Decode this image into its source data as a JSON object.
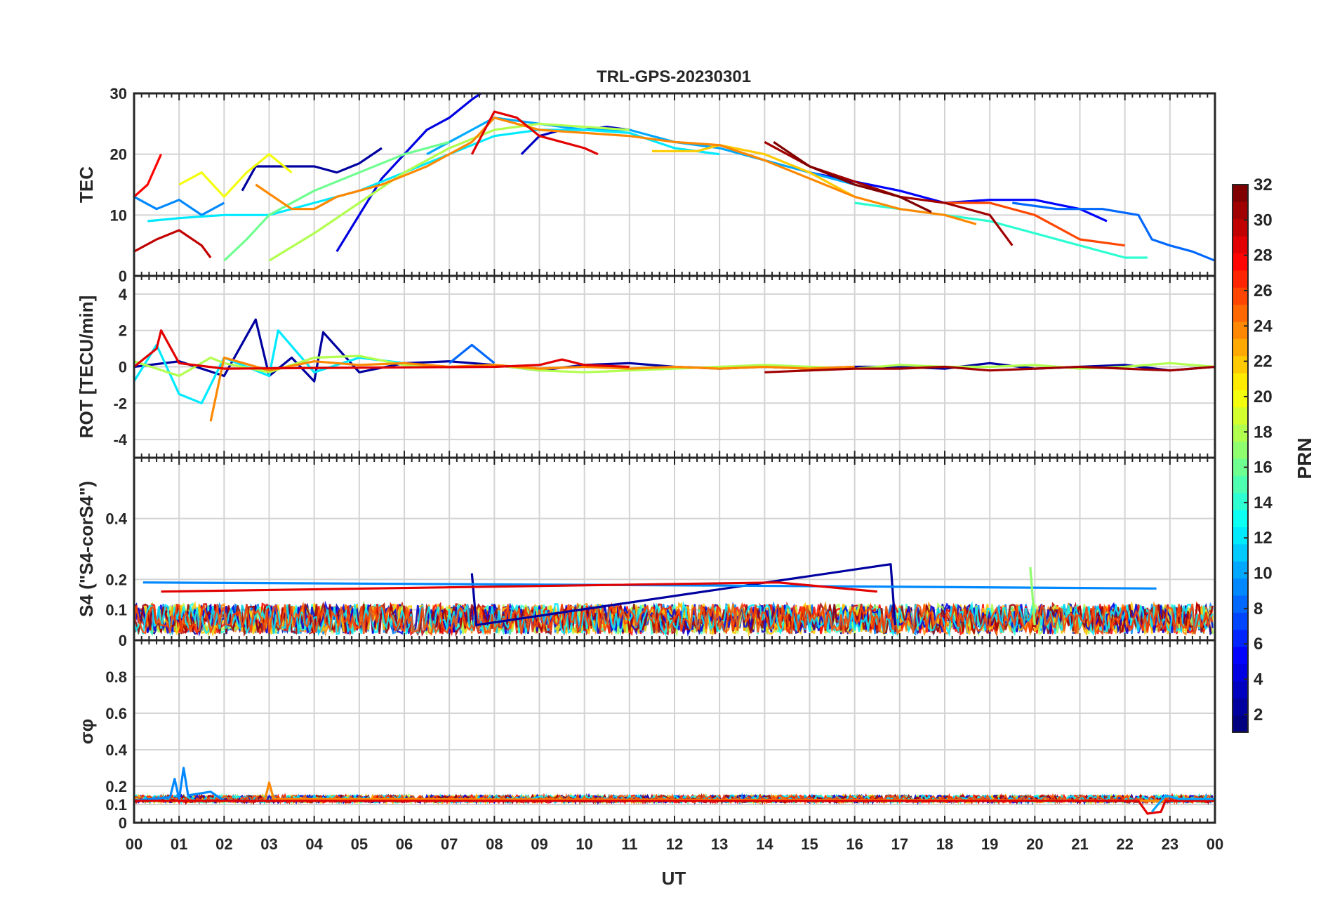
{
  "chart_data": {
    "type": "line",
    "title": "TRL-GPS-20230301",
    "xlabel": "UT",
    "x_ticks": [
      "00",
      "01",
      "02",
      "03",
      "04",
      "05",
      "06",
      "07",
      "08",
      "09",
      "10",
      "11",
      "12",
      "13",
      "14",
      "15",
      "16",
      "17",
      "18",
      "19",
      "20",
      "21",
      "22",
      "23",
      "00"
    ],
    "xlim": [
      0,
      24
    ],
    "grid": true,
    "colorbar": {
      "label": "PRN",
      "range": [
        1,
        32
      ],
      "ticks": [
        "2",
        "4",
        "6",
        "8",
        "10",
        "12",
        "14",
        "16",
        "18",
        "20",
        "22",
        "24",
        "26",
        "28",
        "30",
        "32"
      ],
      "colormap": "jet"
    },
    "panels": [
      {
        "id": "tec",
        "ylabel": "TEC",
        "ylim": [
          0,
          30
        ],
        "yticks": [
          "0",
          "10",
          "20",
          "30"
        ],
        "series": [
          {
            "prn": 2,
            "x": [
              2.4,
              2.7,
              3.0,
              3.5,
              4.0,
              4.5,
              5.0,
              5.5
            ],
            "values": [
              14,
              18,
              18,
              18,
              18,
              17,
              18.5,
              21
            ]
          },
          {
            "prn": 3,
            "x": [
              8.6,
              9.0,
              9.5,
              10.0,
              10.5,
              11.0
            ],
            "values": [
              20,
              23,
              24,
              24,
              24.5,
              24
            ]
          },
          {
            "prn": 4,
            "x": [
              4.5,
              5.0,
              5.5,
              6.0,
              6.5,
              7.0,
              7.5,
              7.7
            ],
            "values": [
              4,
              10,
              16,
              20,
              24,
              26,
              29,
              30
            ]
          },
          {
            "prn": 5,
            "x": [
              15,
              16,
              17,
              18,
              19,
              20,
              21,
              21.6
            ],
            "values": [
              17,
              15.5,
              14,
              12,
              12.5,
              12.5,
              11,
              9
            ]
          },
          {
            "prn": 8,
            "x": [
              19.5,
              20.5,
              21.5,
              22.3,
              22.6,
              23.0,
              23.5,
              24.0
            ],
            "values": [
              12,
              11,
              11,
              10,
              6,
              5,
              4,
              2.5
            ]
          },
          {
            "prn": 9,
            "x": [
              0,
              0.5,
              1.0,
              1.5,
              2.0
            ],
            "values": [
              13,
              11,
              12.5,
              10,
              12
            ]
          },
          {
            "prn": 10,
            "x": [
              6.5,
              7.0,
              7.5,
              8.0,
              9.0,
              10.0,
              11.0,
              12.0,
              13.0,
              14.0,
              15.0,
              16.0
            ],
            "values": [
              20,
              22,
              24,
              26,
              25,
              24,
              24,
              22,
              21,
              19,
              17,
              15
            ]
          },
          {
            "prn": 12,
            "x": [
              0.3,
              1.0,
              2.0,
              3.0,
              4.0,
              5.0,
              6.0,
              7.0,
              8.0,
              9.0,
              10.0,
              11.0,
              12.0,
              13.0
            ],
            "values": [
              9,
              9.5,
              10,
              10,
              12,
              14,
              17,
              20,
              23,
              24,
              24,
              23.5,
              21,
              20
            ]
          },
          {
            "prn": 14,
            "x": [
              16,
              17,
              18,
              19,
              20,
              21,
              22,
              22.5
            ],
            "values": [
              12,
              11,
              10,
              9,
              7,
              5,
              3,
              3
            ]
          },
          {
            "prn": 16,
            "x": [
              2.0,
              2.5,
              3.0,
              4.0,
              5.0,
              6.0,
              7.0
            ],
            "values": [
              2.5,
              6,
              10,
              14,
              17,
              20,
              22
            ]
          },
          {
            "prn": 18,
            "x": [
              3.0,
              4.0,
              5.0,
              6.0,
              7.0,
              8.0,
              9.0,
              10.0,
              11.0
            ],
            "values": [
              2.5,
              7,
              12,
              17,
              21,
              24,
              25,
              24.5,
              24
            ]
          },
          {
            "prn": 20,
            "x": [
              1.0,
              1.5,
              2.0,
              2.5,
              3.0,
              3.5
            ],
            "values": [
              15,
              17,
              13,
              17,
              20,
              17
            ]
          },
          {
            "prn": 22,
            "x": [
              11.5,
              12.5,
              13.0,
              14.0,
              15.0,
              16.0
            ],
            "values": [
              20.5,
              20.5,
              21.5,
              20,
              17,
              13
            ]
          },
          {
            "prn": 24,
            "x": [
              2.7,
              3.5,
              4.0,
              4.5,
              5.5,
              6.5,
              7.5,
              8.0,
              9.0,
              10.0,
              11.0,
              12.0,
              13.0,
              14.0,
              15.0,
              16.0,
              17.0,
              18.0,
              18.7
            ],
            "values": [
              15,
              11,
              11,
              13,
              15,
              18,
              22,
              26,
              24,
              23.5,
              23,
              22,
              21.5,
              19,
              16,
              13,
              11,
              10,
              8.5
            ]
          },
          {
            "prn": 26,
            "x": [
              18,
              19,
              20,
              21,
              22
            ],
            "values": [
              12,
              12,
              10,
              6,
              5
            ]
          },
          {
            "prn": 28,
            "x": [
              0,
              0.3,
              0.6
            ],
            "values": [
              13,
              15,
              20
            ]
          },
          {
            "prn": 29,
            "x": [
              7.5,
              8.0,
              8.5,
              9.0,
              9.5,
              10.0,
              10.3
            ],
            "values": [
              20,
              27,
              26,
              23,
              22,
              21,
              20
            ]
          },
          {
            "prn": 30,
            "x": [
              0,
              0.5,
              1.0,
              1.5,
              1.7
            ],
            "values": [
              4,
              6,
              7.5,
              5,
              3
            ]
          },
          {
            "prn": 31,
            "x": [
              14,
              15,
              16,
              17,
              18,
              19,
              19.5
            ],
            "values": [
              22,
              18,
              15.5,
              13,
              12,
              10,
              5
            ]
          },
          {
            "prn": 32,
            "x": [
              14.2,
              15,
              16,
              17,
              17.7
            ],
            "values": [
              22,
              18,
              15,
              13,
              10.5
            ]
          }
        ]
      },
      {
        "id": "rot",
        "ylabel": "ROT [TECU/min]",
        "ylim": [
          -5,
          5
        ],
        "yticks": [
          "-4",
          "-2",
          "0",
          "2",
          "4"
        ],
        "series": [
          {
            "prn": 2,
            "x": [
              0,
              1,
              2,
              2.7,
              3,
              3.5,
              4,
              4.2,
              5,
              6,
              7,
              8,
              9,
              10,
              11,
              12,
              13,
              14,
              15,
              16,
              17,
              18,
              19,
              20,
              21,
              22,
              23,
              24
            ],
            "values": [
              0,
              0.3,
              -0.5,
              2.6,
              -0.5,
              0.5,
              -0.8,
              1.9,
              -0.3,
              0.2,
              0.3,
              0.1,
              -0.2,
              0.1,
              0.2,
              0,
              -0.1,
              0,
              -0.1,
              0,
              0,
              -0.1,
              0.2,
              -0.1,
              0,
              0.1,
              -0.2,
              0
            ]
          },
          {
            "prn": 8,
            "x": [
              7,
              7.5,
              8
            ],
            "values": [
              0.2,
              1.2,
              0.2
            ]
          },
          {
            "prn": 12,
            "x": [
              0,
              0.5,
              1,
              1.5,
              2,
              3,
              3.2,
              4,
              5,
              6
            ],
            "values": [
              -0.8,
              1.2,
              -1.5,
              -2,
              0.5,
              -0.5,
              2.0,
              -0.3,
              0.5,
              0.2
            ]
          },
          {
            "prn": 18,
            "x": [
              0,
              1,
              1.7,
              2,
              3,
              4,
              5,
              6,
              7,
              8,
              9,
              10,
              11,
              12,
              13,
              14,
              15,
              16,
              17,
              18,
              19,
              20,
              21,
              22,
              23,
              24
            ],
            "values": [
              0.3,
              -0.5,
              0.5,
              0.2,
              -0.3,
              0.5,
              0.6,
              0.1,
              0,
              0.1,
              -0.2,
              -0.3,
              -0.2,
              -0.1,
              0,
              0.1,
              0,
              -0.1,
              0.1,
              0,
              0,
              0.1,
              -0.1,
              0,
              0.2,
              0
            ]
          },
          {
            "prn": 24,
            "x": [
              1.7,
              2,
              3,
              4,
              5,
              6,
              7,
              8,
              9,
              10,
              11,
              12,
              13,
              14,
              15,
              16
            ],
            "values": [
              -3,
              0.5,
              -0.2,
              0.3,
              0.1,
              0.2,
              0,
              0.1,
              -0.1,
              0,
              -0.1,
              0,
              -0.1,
              0,
              -0.1,
              0
            ]
          },
          {
            "prn": 29,
            "x": [
              0,
              0.5,
              0.6,
              1,
              2,
              8,
              9,
              9.5,
              10,
              11
            ],
            "values": [
              0,
              1.0,
              2.0,
              0.2,
              -0.1,
              0,
              0.1,
              0.4,
              0.1,
              0
            ]
          },
          {
            "prn": 31,
            "x": [
              14,
              15,
              16,
              17,
              18,
              19,
              20,
              21,
              22,
              23,
              24
            ],
            "values": [
              -0.3,
              -0.2,
              -0.1,
              -0.1,
              0,
              -0.2,
              -0.1,
              0,
              -0.1,
              -0.2,
              0
            ]
          }
        ]
      },
      {
        "id": "s4",
        "ylabel": "S4 (\"S4-corS4\")",
        "ylim": [
          0,
          0.6
        ],
        "yticks": [
          "0",
          "0.1",
          "0.2",
          "0.4"
        ],
        "series": [
          {
            "prn": 2,
            "x": [
              7.5,
              7.6,
              16.8,
              16.9
            ],
            "values": [
              0.22,
              0.05,
              0.25,
              0.05
            ]
          },
          {
            "prn": 9,
            "x": [
              0.2,
              12.7,
              22.7
            ],
            "values": [
              0.19,
              0.18,
              0.17
            ]
          },
          {
            "prn": 17,
            "x": [
              19.9,
              20.0
            ],
            "values": [
              0.24,
              0.05
            ]
          },
          {
            "prn": 29,
            "x": [
              0.6,
              14.3,
              16.5
            ],
            "values": [
              0.16,
              0.19,
              0.16
            ]
          }
        ],
        "baseline": {
          "low": 0.02,
          "high": 0.12
        }
      },
      {
        "id": "sigma_phi",
        "ylabel": "σφ",
        "ylim": [
          0,
          1
        ],
        "yticks": [
          "0",
          "0.1",
          "0.2",
          "0.4",
          "0.6",
          "0.8"
        ],
        "series": [
          {
            "prn": 9,
            "x": [
              0,
              0.8,
              0.9,
              1.0,
              1.1,
              1.2,
              1.7,
              2,
              24
            ],
            "values": [
              0.12,
              0.14,
              0.24,
              0.13,
              0.3,
              0.15,
              0.17,
              0.12,
              0.12
            ]
          },
          {
            "prn": 24,
            "x": [
              2.9,
              3.0,
              3.1,
              24
            ],
            "values": [
              0.12,
              0.22,
              0.13,
              0.12
            ]
          },
          {
            "prn": 29,
            "x": [
              0,
              22.3,
              22.5,
              22.8,
              22.9,
              24
            ],
            "values": [
              0.12,
              0.12,
              0.05,
              0.06,
              0.12,
              0.12
            ]
          },
          {
            "prn": 10,
            "x": [
              22.6,
              22.9,
              23.2,
              24
            ],
            "values": [
              0.06,
              0.15,
              0.13,
              0.13
            ]
          }
        ],
        "baseline": {
          "low": 0.11,
          "high": 0.15
        }
      }
    ]
  }
}
